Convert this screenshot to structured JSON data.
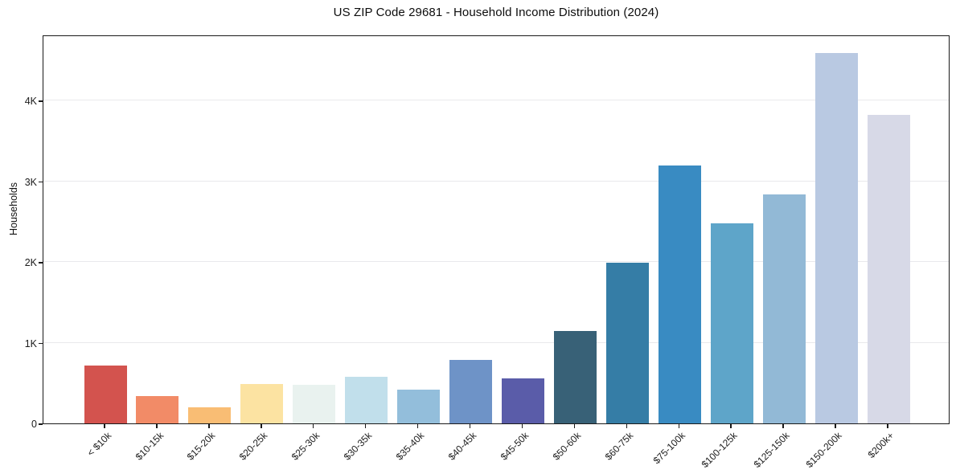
{
  "chart_data": {
    "type": "bar",
    "title": "US ZIP Code 29681 - Household Income Distribution (2024)",
    "xlabel": "",
    "ylabel": "Households",
    "categories": [
      "< $10k",
      "$10-15k",
      "$15-20k",
      "$20-25k",
      "$25-30k",
      "$30-35k",
      "$35-40k",
      "$40-45k",
      "$45-50k",
      "$50-60k",
      "$60-75k",
      "$75-100k",
      "$100-125k",
      "$125-150k",
      "$150-200k",
      "$200k+"
    ],
    "values": [
      720,
      335,
      195,
      490,
      475,
      580,
      415,
      790,
      555,
      1140,
      1990,
      3190,
      2480,
      2840,
      4590,
      3820
    ],
    "bar_colors": [
      "#d3534e",
      "#f28b67",
      "#f9bd74",
      "#fce3a2",
      "#e9f2ef",
      "#c1dfeb",
      "#93bedb",
      "#6e93c7",
      "#5a5ca9",
      "#386177",
      "#357da6",
      "#398bc2",
      "#5ea5c9",
      "#92b9d6",
      "#b9c9e2",
      "#d7d9e7"
    ],
    "ylim": [
      0,
      4816
    ],
    "yticks": {
      "values": [
        0,
        1000,
        2000,
        3000,
        4000
      ],
      "labels": [
        "0",
        "1K",
        "2K",
        "3K",
        "4K"
      ]
    },
    "grid": {
      "axis": "y",
      "color": "#e9e9ec",
      "visible": true
    },
    "legend_position": "none",
    "colors": {
      "spine": "#1a1a1a",
      "text": "#1c1c1c",
      "background": "#ffffff"
    }
  }
}
